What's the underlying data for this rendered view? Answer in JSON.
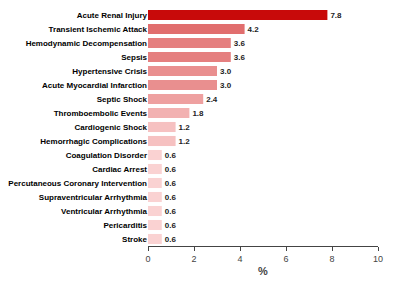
{
  "chart_data": {
    "type": "bar",
    "orientation": "horizontal",
    "xlabel": "%",
    "categories": [
      "Stroke",
      "Pericarditis",
      "Ventricular Arrhythmia",
      "Supraventricular Arrhythmia",
      "Percutaneous Coronary Intervention",
      "Cardiac Arrest",
      "Coagulation Disorder",
      "Hemorrhagic Complications",
      "Cardiogenic Shock",
      "Thromboembolic Events",
      "Septic Shock",
      "Acute Myocardial Infarction",
      "Hypertensive Crisis",
      "Sepsis",
      "Hemodynamic Decompensation",
      "Transient Ischemic Attack",
      "Acute Renal Injury"
    ],
    "values": [
      0.6,
      0.6,
      0.6,
      0.6,
      0.6,
      0.6,
      0.6,
      1.2,
      1.2,
      1.8,
      2.4,
      3.0,
      3.0,
      3.6,
      3.6,
      4.2,
      7.8
    ],
    "value_labels": [
      "0.6",
      "0.6",
      "0.6",
      "0.6",
      "0.6",
      "0.6",
      "0.6",
      "1.2",
      "1.2",
      "1.8",
      "2.4",
      "3.0",
      "3.0",
      "3.6",
      "3.6",
      "4.2",
      "7.8"
    ],
    "colors": [
      "#fad2d2",
      "#fad2d2",
      "#fad2d2",
      "#fad2d2",
      "#fad2d2",
      "#fad2d2",
      "#fad2d2",
      "#f6c1c1",
      "#f6c1c1",
      "#f2b1b1",
      "#eea0a0",
      "#e98f8f",
      "#e98f8f",
      "#e57f7f",
      "#e57f7f",
      "#e16e6e",
      "#c80a0a"
    ],
    "xlim": [
      0,
      10
    ],
    "xticks": [
      0,
      2,
      4,
      6,
      8,
      10
    ],
    "data_labels": true,
    "grid": false
  }
}
